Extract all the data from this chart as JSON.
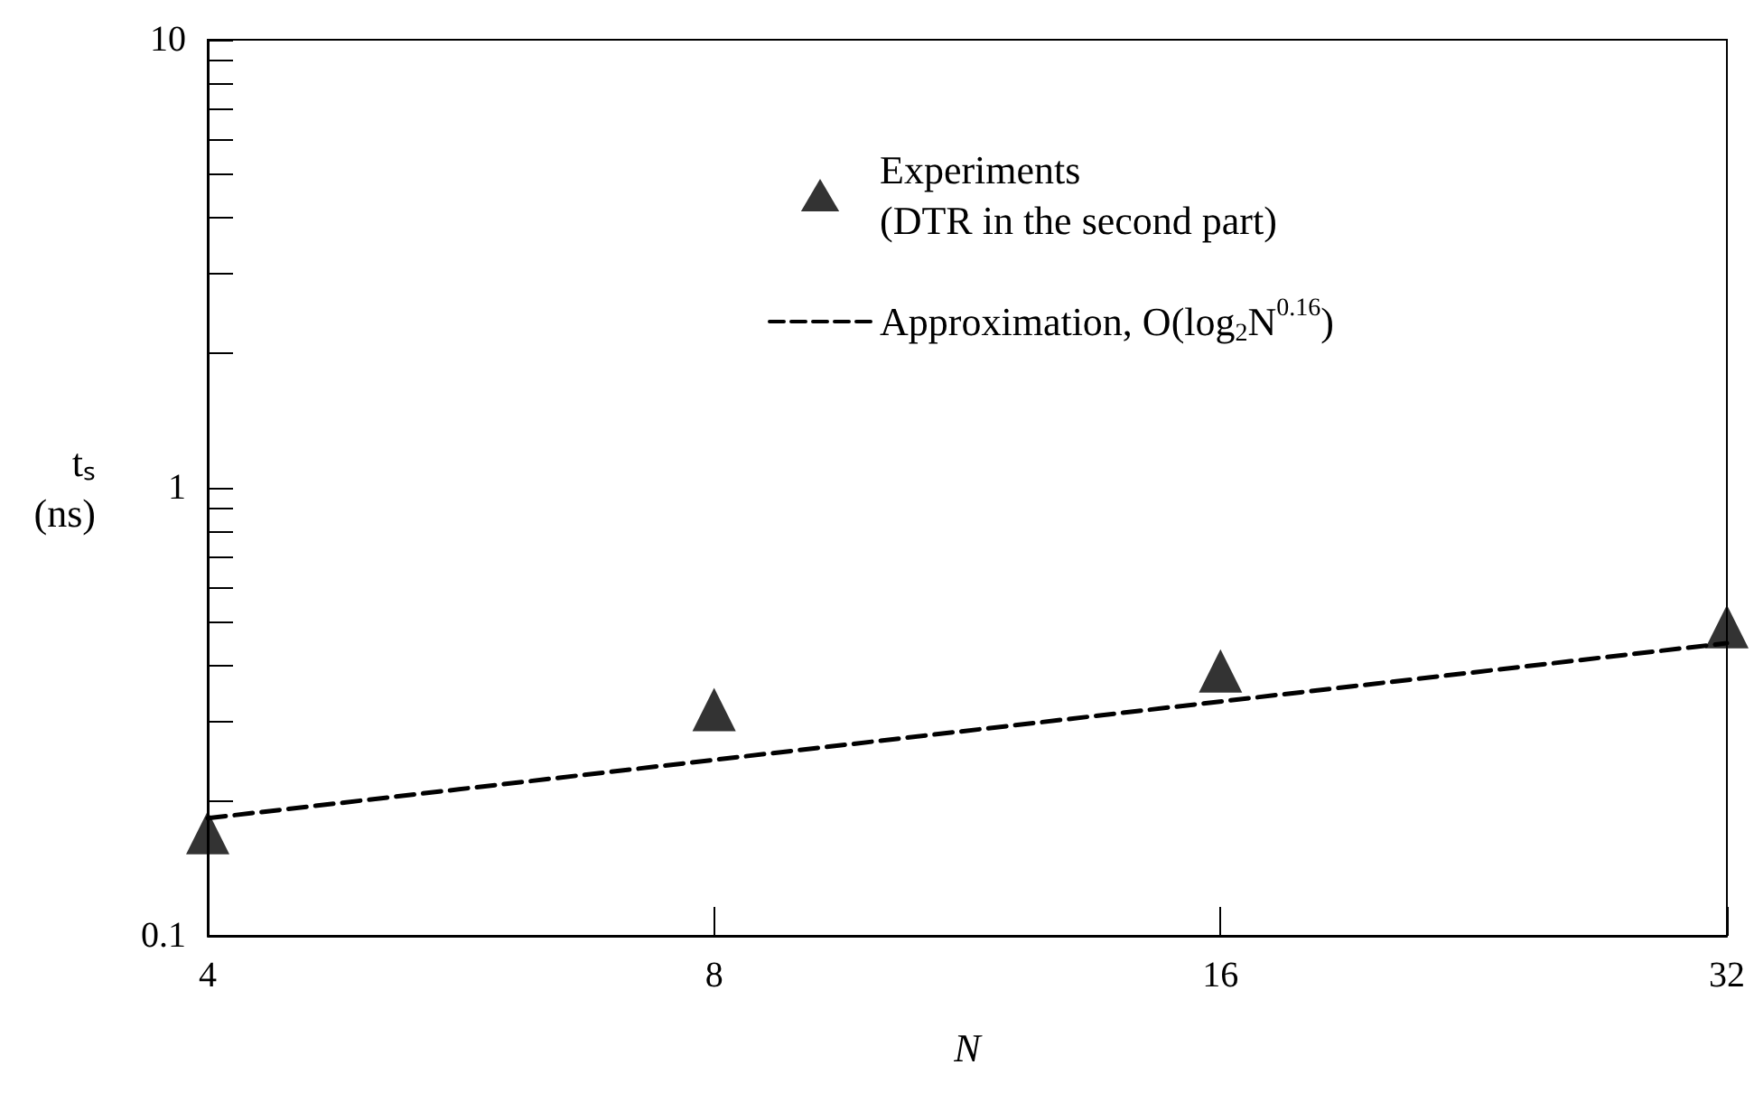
{
  "chart_data": {
    "type": "scatter",
    "xlabel": "N",
    "ylabel": "tₛ\n(ns)",
    "log": "xy",
    "xlim": [
      4,
      32
    ],
    "xticks": [
      4,
      8,
      16,
      32
    ],
    "ylim": [
      0.1,
      10
    ],
    "yticks": [
      0.1,
      {
        "value": 0.2,
        "label": null
      },
      {
        "value": 0.3,
        "label": null
      },
      {
        "value": 0.4,
        "label": null
      },
      {
        "value": 0.5,
        "label": null
      },
      {
        "value": 0.6,
        "label": null
      },
      {
        "value": 0.7,
        "label": null
      },
      {
        "value": 0.8,
        "label": null
      },
      {
        "value": 0.9,
        "label": null
      },
      1,
      {
        "value": 2,
        "label": null
      },
      {
        "value": 3,
        "label": null
      },
      {
        "value": 4,
        "label": null
      },
      {
        "value": 5,
        "label": null
      },
      {
        "value": 6,
        "label": null
      },
      {
        "value": 7,
        "label": null
      },
      {
        "value": 8,
        "label": null
      },
      {
        "value": 9,
        "label": null
      },
      10
    ],
    "grid": false,
    "legend": "top",
    "series": [
      {
        "name": "Experiments\n(DTR in the second part)",
        "marker": "triangle",
        "color": "#000000",
        "x": [
          4,
          8,
          16,
          32
        ],
        "values": [
          0.17,
          0.32,
          0.39,
          0.49
        ]
      },
      {
        "name": "Approximation, O(log$_{2}$N$^{0.16}$)",
        "type": "line",
        "line_style": "dashed",
        "marker": "none",
        "color": "#000000",
        "x": [
          4,
          32
        ],
        "values": [
          0.183,
          0.45
        ]
      }
    ]
  }
}
